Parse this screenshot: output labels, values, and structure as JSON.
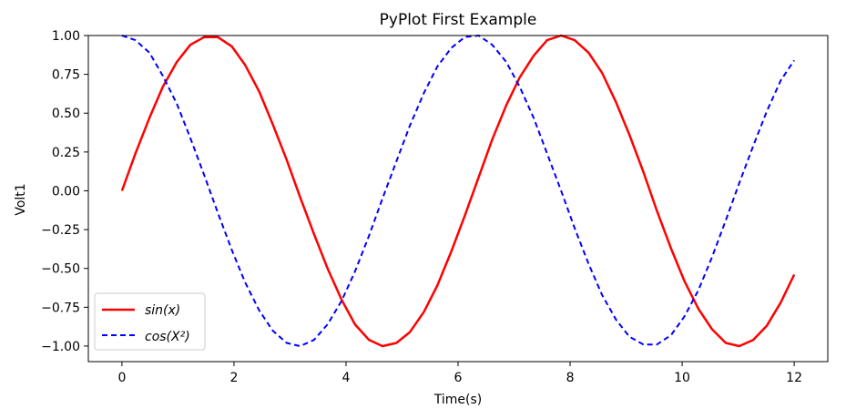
{
  "chart_data": {
    "type": "line",
    "title": "PyPlot First Example",
    "xlabel": "Time(s)",
    "ylabel": "Volt1",
    "xlim": [
      -0.6,
      12.6
    ],
    "ylim": [
      -1.1,
      1.0
    ],
    "xticks": [
      0,
      2,
      4,
      6,
      8,
      10,
      12
    ],
    "xtick_labels": [
      "0",
      "2",
      "4",
      "6",
      "8",
      "10",
      "12"
    ],
    "yticks": [
      1.0,
      0.75,
      0.5,
      0.25,
      0.0,
      -0.25,
      -0.5,
      -0.75,
      -1.0
    ],
    "ytick_labels": [
      "1.00",
      "0.75",
      "0.50",
      "0.25",
      "0.00",
      "−0.25",
      "−0.50",
      "−0.75",
      "−1.00"
    ],
    "grid": false,
    "legend_position": "lower-left",
    "x": [
      0,
      0.24,
      0.49,
      0.73,
      0.98,
      1.22,
      1.47,
      1.71,
      1.96,
      2.2,
      2.45,
      2.69,
      2.94,
      3.18,
      3.43,
      3.67,
      3.92,
      4.16,
      4.41,
      4.65,
      4.9,
      5.14,
      5.39,
      5.63,
      5.88,
      6.12,
      6.37,
      6.61,
      6.86,
      7.1,
      7.35,
      7.59,
      7.84,
      8.08,
      8.33,
      8.57,
      8.82,
      9.06,
      9.31,
      9.55,
      9.8,
      10.04,
      10.29,
      10.53,
      10.78,
      11.02,
      11.27,
      11.51,
      11.76,
      12.0
    ],
    "series": [
      {
        "name": "sin(x)",
        "color": "#ff0000",
        "style": "solid",
        "values": [
          0.0,
          0.24,
          0.47,
          0.67,
          0.83,
          0.94,
          0.99,
          0.99,
          0.93,
          0.81,
          0.64,
          0.43,
          0.2,
          -0.04,
          -0.28,
          -0.5,
          -0.7,
          -0.86,
          -0.96,
          -1.0,
          -0.98,
          -0.91,
          -0.78,
          -0.61,
          -0.39,
          -0.16,
          0.09,
          0.33,
          0.55,
          0.73,
          0.87,
          0.97,
          1.0,
          0.97,
          0.89,
          0.76,
          0.57,
          0.36,
          0.12,
          -0.13,
          -0.37,
          -0.58,
          -0.76,
          -0.89,
          -0.98,
          -1.0,
          -0.96,
          -0.87,
          -0.72,
          -0.54
        ]
      },
      {
        "name": "cos(X²)",
        "color": "#0000ff",
        "style": "dashed",
        "values": [
          1.0,
          0.97,
          0.89,
          0.74,
          0.56,
          0.34,
          0.1,
          -0.14,
          -0.38,
          -0.59,
          -0.77,
          -0.9,
          -0.98,
          -1.0,
          -0.96,
          -0.86,
          -0.71,
          -0.52,
          -0.29,
          -0.05,
          0.19,
          0.42,
          0.63,
          0.8,
          0.92,
          0.99,
          1.0,
          0.94,
          0.83,
          0.67,
          0.47,
          0.24,
          0.0,
          -0.24,
          -0.47,
          -0.67,
          -0.83,
          -0.94,
          -0.99,
          -0.99,
          -0.93,
          -0.81,
          -0.64,
          -0.43,
          -0.19,
          0.05,
          0.29,
          0.51,
          0.71,
          0.84
        ]
      }
    ]
  }
}
